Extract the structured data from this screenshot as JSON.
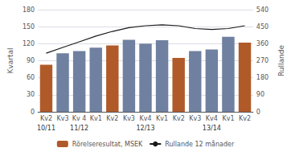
{
  "chart_data": {
    "type": "bar",
    "categories": [
      "Kv2",
      "Kv3",
      "Kv 4",
      "Kv1",
      "Kv2",
      "Kv3",
      "Kv4",
      "Kv1",
      "Kv2",
      "Kv3",
      "Kv4",
      "Kv1",
      "Kv2"
    ],
    "annotations": [
      {
        "text": "10/11",
        "x": 0
      },
      {
        "text": "11/12",
        "x": 2
      },
      {
        "text": "12/13",
        "x": 6
      },
      {
        "text": "13/14",
        "x": 10
      }
    ],
    "series": [
      {
        "name": "Rörelseresultat, MSEK",
        "type": "bar",
        "color": "#b05a2a",
        "colors": [
          "#b05a2a",
          "#7080a0",
          "#7080a0",
          "#7080a0",
          "#b05a2a",
          "#7080a0",
          "#7080a0",
          "#7080a0",
          "#b05a2a",
          "#7080a0",
          "#7080a0",
          "#7080a0",
          "#b05a2a"
        ],
        "values": [
          83,
          103,
          107,
          113,
          117,
          127,
          120,
          126,
          95,
          107,
          110,
          132,
          122
        ]
      },
      {
        "name": "Rullande 12 månader",
        "type": "line",
        "axis": "y2",
        "color": "#1a1a1a",
        "values": [
          310,
          340,
          370,
          400,
          425,
          445,
          455,
          460,
          455,
          440,
          435,
          440,
          455
        ]
      }
    ],
    "ylabel": "Kvartal",
    "y2label": "Rullande",
    "ylim": [
      0,
      180
    ],
    "yticks": [
      0,
      30,
      60,
      90,
      120,
      150,
      180
    ],
    "y2lim": [
      0,
      540
    ],
    "y2ticks": [
      0,
      90,
      180,
      270,
      360,
      450,
      540
    ],
    "grid": true,
    "legend": "bottom"
  }
}
